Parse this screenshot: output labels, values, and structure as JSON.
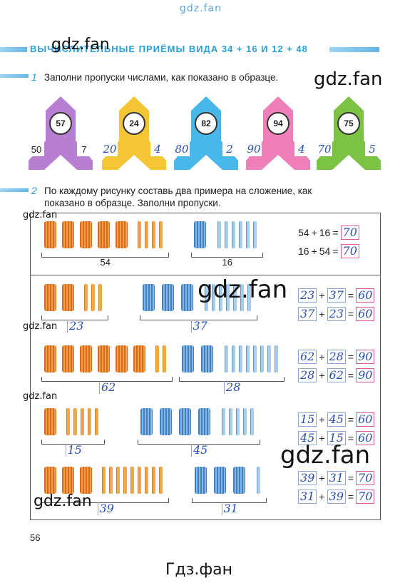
{
  "watermarks": {
    "top": "gdz.fan",
    "mark": "gdz.fan",
    "footer": "Гдз.фан"
  },
  "title": "ВЫЧИСЛИТЕЛЬНЫЕ ПРИЁМЫ ВИДА 34 + 16 И 12 + 48",
  "task1": {
    "num": "1",
    "text": "Заполни пропуски числами, как показано в образце."
  },
  "rockets": [
    {
      "top": "57",
      "left": "50",
      "right": "7",
      "color": "#b77fd2",
      "hand": false
    },
    {
      "top": "24",
      "left": "20",
      "right": "4",
      "color": "#f4c534",
      "hand": true
    },
    {
      "top": "82",
      "left": "80",
      "right": "2",
      "color": "#48b8ea",
      "hand": true
    },
    {
      "top": "94",
      "left": "90",
      "right": "4",
      "color": "#ee7fb9",
      "hand": true
    },
    {
      "top": "75",
      "left": "70",
      "right": "5",
      "color": "#7cc244",
      "hand": true
    }
  ],
  "task2": {
    "num": "2",
    "line1": "По каждому рисунку составь два примера на сложение, как",
    "line2": "показано в образце. Заполни пропуски."
  },
  "rows": [
    {
      "left_label": "54",
      "right_label": "16",
      "left_bundles": 5,
      "left_sticks": 4,
      "right_bundles": 1,
      "right_sticks": 6,
      "eq1": [
        "54",
        "16",
        "70"
      ],
      "eq2": [
        "16",
        "54",
        "70"
      ]
    },
    {
      "left_label": "23",
      "right_label": "37",
      "left_bundles": 2,
      "left_sticks": 3,
      "right_bundles": 3,
      "right_sticks": 7,
      "eq1": [
        "23",
        "37",
        "60"
      ],
      "eq2": [
        "37",
        "23",
        "60"
      ]
    },
    {
      "left_label": "62",
      "right_label": "28",
      "left_bundles": 6,
      "left_sticks": 2,
      "right_bundles": 2,
      "right_sticks": 8,
      "eq1": [
        "62",
        "28",
        "90"
      ],
      "eq2": [
        "28",
        "62",
        "90"
      ]
    },
    {
      "left_label": "15",
      "right_label": "45",
      "left_bundles": 1,
      "left_sticks": 5,
      "right_bundles": 4,
      "right_sticks": 5,
      "eq1": [
        "15",
        "45",
        "60"
      ],
      "eq2": [
        "45",
        "15",
        "60"
      ]
    },
    {
      "left_label": "39",
      "right_label": "31",
      "left_bundles": 3,
      "left_sticks": 9,
      "right_bundles": 3,
      "right_sticks": 1,
      "eq1": [
        "39",
        "31",
        "70"
      ],
      "eq2": [
        "31",
        "39",
        "70"
      ]
    }
  ],
  "ops": {
    "plus": "+",
    "eq": "="
  },
  "page_number": "56"
}
